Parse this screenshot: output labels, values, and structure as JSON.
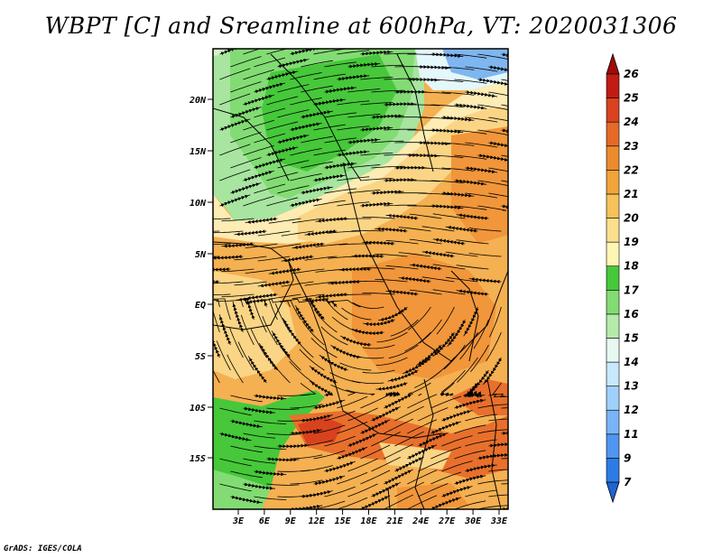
{
  "title": "WBPT [C] and Sreamline at 600hPa, VT: 2020031306",
  "footer": "GrADS: IGES/COLA",
  "map": {
    "lat_labels": [
      "20N",
      "15N",
      "10N",
      "5N",
      "EQ",
      "5S",
      "10S",
      "15S"
    ],
    "lon_labels": [
      "3E",
      "6E",
      "9E",
      "12E",
      "15E",
      "18E",
      "21E",
      "24E",
      "27E",
      "30E",
      "33E"
    ],
    "lon_range_deg": [
      0,
      35
    ],
    "lat_range_deg": [
      -20,
      25
    ]
  },
  "colorbar": {
    "labels": [
      "7",
      "9",
      "11",
      "12",
      "13",
      "14",
      "15",
      "16",
      "17",
      "18",
      "19",
      "20",
      "21",
      "22",
      "23",
      "24",
      "25",
      "26"
    ],
    "colors": [
      "#1e64d2",
      "#2c7ce6",
      "#4f96f0",
      "#78b4f7",
      "#9fd0fb",
      "#c8e8fd",
      "#e6f8f0",
      "#b4ebab",
      "#82dc73",
      "#46c83a",
      "#fff5b4",
      "#fbdf8c",
      "#f7c25c",
      "#f1a43a",
      "#ec8a2e",
      "#e56a28",
      "#d9421e",
      "#c01c14",
      "#a00a0a"
    ]
  },
  "field_colors": {
    "green": "#46c83a",
    "light_green": "#a8e5a0",
    "pale_green": "#d5f3c8",
    "pale_blue": "#e4f7fb",
    "blue": "#7fb6f0",
    "pale_yellow": "#fdecb3",
    "yellow": "#fbd586",
    "orange": "#f5b051",
    "dark_orange": "#f1963a",
    "red_orange": "#e8702c"
  }
}
